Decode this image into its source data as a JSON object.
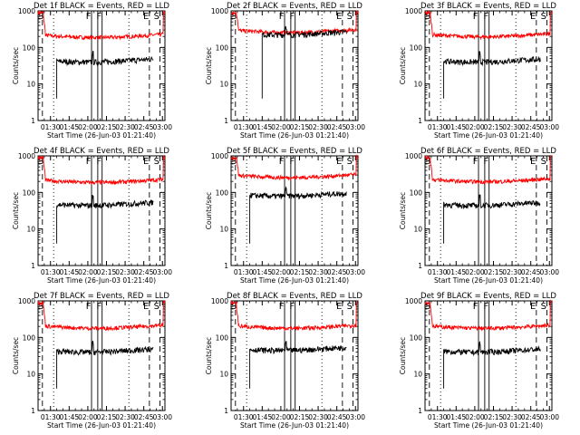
{
  "figure": {
    "ylabel": "Counts/sec",
    "xlabel": "Start Time (26-Jun-03 01:21:40)",
    "x_ticks": [
      "01:30",
      "01:45",
      "02:00",
      "02:15",
      "02:30",
      "02:45",
      "03:00"
    ],
    "y_ticks": [
      "1",
      "10",
      "100",
      "1000"
    ],
    "marker_letters": [
      "F",
      "F",
      "E",
      "S"
    ],
    "colors": {
      "events": "#000000",
      "lld": "#ff0000",
      "axes": "#000000"
    }
  },
  "chart_data": [
    {
      "type": "line",
      "title": "Det 1f BLACK = Events, RED = LLD",
      "xlabel": "Start Time (26-Jun-03 01:21:40)",
      "ylabel": "Counts/sec",
      "ylim": [
        1,
        1000
      ],
      "xlim_min": [
        80,
        182
      ],
      "series": [
        {
          "name": "Events",
          "level": 45,
          "start": 95,
          "end": 173
        },
        {
          "name": "LLD",
          "level": 220,
          "start": 80,
          "end": 182
        }
      ]
    },
    {
      "type": "line",
      "title": "Det 2f BLACK = Events, RED = LLD",
      "xlabel": "Start Time (26-Jun-03 01:21:40)",
      "ylabel": "Counts/sec",
      "ylim": [
        1,
        1000
      ],
      "xlim_min": [
        80,
        182
      ],
      "series": [
        {
          "name": "Events",
          "level": 250,
          "start": 105,
          "end": 173
        },
        {
          "name": "LLD",
          "level": 300,
          "start": 80,
          "end": 182
        }
      ]
    },
    {
      "type": "line",
      "title": "Det 3f BLACK = Events, RED = LLD",
      "xlabel": "Start Time (26-Jun-03 01:21:40)",
      "ylabel": "Counts/sec",
      "ylim": [
        1,
        1000
      ],
      "xlim_min": [
        80,
        182
      ],
      "series": [
        {
          "name": "Events",
          "level": 45,
          "start": 95,
          "end": 173
        },
        {
          "name": "LLD",
          "level": 230,
          "start": 80,
          "end": 182
        }
      ]
    },
    {
      "type": "line",
      "title": "Det 4f BLACK = Events, RED = LLD",
      "xlabel": "Start Time (26-Jun-03 01:21:40)",
      "ylabel": "Counts/sec",
      "ylim": [
        1,
        1000
      ],
      "xlim_min": [
        80,
        182
      ],
      "series": [
        {
          "name": "Events",
          "level": 50,
          "start": 95,
          "end": 173
        },
        {
          "name": "LLD",
          "level": 220,
          "start": 80,
          "end": 182
        }
      ]
    },
    {
      "type": "line",
      "title": "Det 5f BLACK = Events, RED = LLD",
      "xlabel": "Start Time (26-Jun-03 01:21:40)",
      "ylabel": "Counts/sec",
      "ylim": [
        1,
        1000
      ],
      "xlim_min": [
        80,
        182
      ],
      "series": [
        {
          "name": "Events",
          "level": 90,
          "start": 95,
          "end": 173
        },
        {
          "name": "LLD",
          "level": 300,
          "start": 80,
          "end": 182
        }
      ]
    },
    {
      "type": "line",
      "title": "Det 6f BLACK = Events, RED = LLD",
      "xlabel": "Start Time (26-Jun-03 01:21:40)",
      "ylabel": "Counts/sec",
      "ylim": [
        1,
        1000
      ],
      "xlim_min": [
        80,
        182
      ],
      "series": [
        {
          "name": "Events",
          "level": 50,
          "start": 95,
          "end": 173
        },
        {
          "name": "LLD",
          "level": 230,
          "start": 80,
          "end": 182
        }
      ]
    },
    {
      "type": "line",
      "title": "Det 7f BLACK = Events, RED = LLD",
      "xlabel": "Start Time (26-Jun-03 01:21:40)",
      "ylabel": "Counts/sec",
      "ylim": [
        1,
        1000
      ],
      "xlim_min": [
        80,
        182
      ],
      "series": [
        {
          "name": "Events",
          "level": 45,
          "start": 95,
          "end": 173
        },
        {
          "name": "LLD",
          "level": 210,
          "start": 80,
          "end": 182
        }
      ]
    },
    {
      "type": "line",
      "title": "Det 8f BLACK = Events, RED = LLD",
      "xlabel": "Start Time (26-Jun-03 01:21:40)",
      "ylabel": "Counts/sec",
      "ylim": [
        1,
        1000
      ],
      "xlim_min": [
        80,
        182
      ],
      "series": [
        {
          "name": "Events",
          "level": 50,
          "start": 95,
          "end": 173
        },
        {
          "name": "LLD",
          "level": 210,
          "start": 80,
          "end": 182
        }
      ]
    },
    {
      "type": "line",
      "title": "Det 9f BLACK = Events, RED = LLD",
      "xlabel": "Start Time (26-Jun-03 01:21:40)",
      "ylabel": "Counts/sec",
      "ylim": [
        1,
        1000
      ],
      "xlim_min": [
        80,
        182
      ],
      "series": [
        {
          "name": "Events",
          "level": 45,
          "start": 95,
          "end": 173
        },
        {
          "name": "LLD",
          "level": 210,
          "start": 80,
          "end": 182
        }
      ]
    }
  ]
}
